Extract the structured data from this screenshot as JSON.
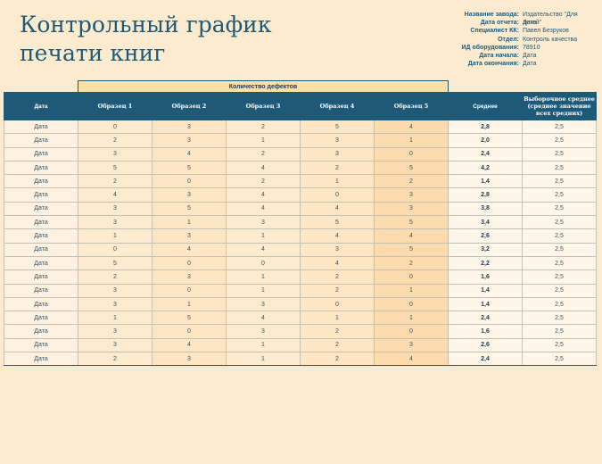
{
  "title": {
    "line1": "Контрольный график",
    "line2": "печати книг"
  },
  "meta": [
    {
      "label": "Название завода:",
      "value": "Издательство \"Для детей\""
    },
    {
      "label": "Дата отчета:",
      "value": "Дата"
    },
    {
      "label": "Специалист КК:",
      "value": "Павел Безруков"
    },
    {
      "label": "Отдел:",
      "value": "Контроль качества"
    },
    {
      "label": "ИД оборудования:",
      "value": "78910"
    },
    {
      "label": "Дата начала:",
      "value": "Дата"
    },
    {
      "label": "Дата окончания:",
      "value": "Дата"
    }
  ],
  "table": {
    "group_header": "Количество дефектов",
    "columns": [
      "Дата",
      "Образец 1",
      "Образец 2",
      "Образец 3",
      "Образец 4",
      "Образец 5",
      "Среднее",
      "Выборочное среднее (среднее значение всех средних)"
    ],
    "rows": [
      [
        "Дата",
        "0",
        "3",
        "2",
        "5",
        "4",
        "2,8",
        "2,5"
      ],
      [
        "Дата",
        "2",
        "3",
        "1",
        "3",
        "1",
        "2,0",
        "2,5"
      ],
      [
        "Дата",
        "3",
        "4",
        "2",
        "3",
        "0",
        "2,4",
        "2,5"
      ],
      [
        "Дата",
        "5",
        "5",
        "4",
        "2",
        "5",
        "4,2",
        "2,5"
      ],
      [
        "Дата",
        "2",
        "0",
        "2",
        "1",
        "2",
        "1,4",
        "2,5"
      ],
      [
        "Дата",
        "4",
        "3",
        "4",
        "0",
        "3",
        "2,8",
        "2,5"
      ],
      [
        "Дата",
        "3",
        "5",
        "4",
        "4",
        "3",
        "3,8",
        "2,5"
      ],
      [
        "Дата",
        "3",
        "1",
        "3",
        "5",
        "5",
        "3,4",
        "2,5"
      ],
      [
        "Дата",
        "1",
        "3",
        "1",
        "4",
        "4",
        "2,6",
        "2,5"
      ],
      [
        "Дата",
        "0",
        "4",
        "4",
        "3",
        "5",
        "3,2",
        "2,5"
      ],
      [
        "Дата",
        "5",
        "0",
        "0",
        "4",
        "2",
        "2,2",
        "2,5"
      ],
      [
        "Дата",
        "2",
        "3",
        "1",
        "2",
        "0",
        "1,6",
        "2,5"
      ],
      [
        "Дата",
        "3",
        "0",
        "1",
        "2",
        "1",
        "1,4",
        "2,5"
      ],
      [
        "Дата",
        "3",
        "1",
        "3",
        "0",
        "0",
        "1,4",
        "2,5"
      ],
      [
        "Дата",
        "1",
        "5",
        "4",
        "1",
        "1",
        "2,4",
        "2,5"
      ],
      [
        "Дата",
        "3",
        "0",
        "3",
        "2",
        "0",
        "1,6",
        "2,5"
      ],
      [
        "Дата",
        "3",
        "4",
        "1",
        "2",
        "3",
        "2,6",
        "2,5"
      ],
      [
        "Дата",
        "2",
        "3",
        "1",
        "2",
        "4",
        "2,4",
        "2,5"
      ]
    ]
  }
}
